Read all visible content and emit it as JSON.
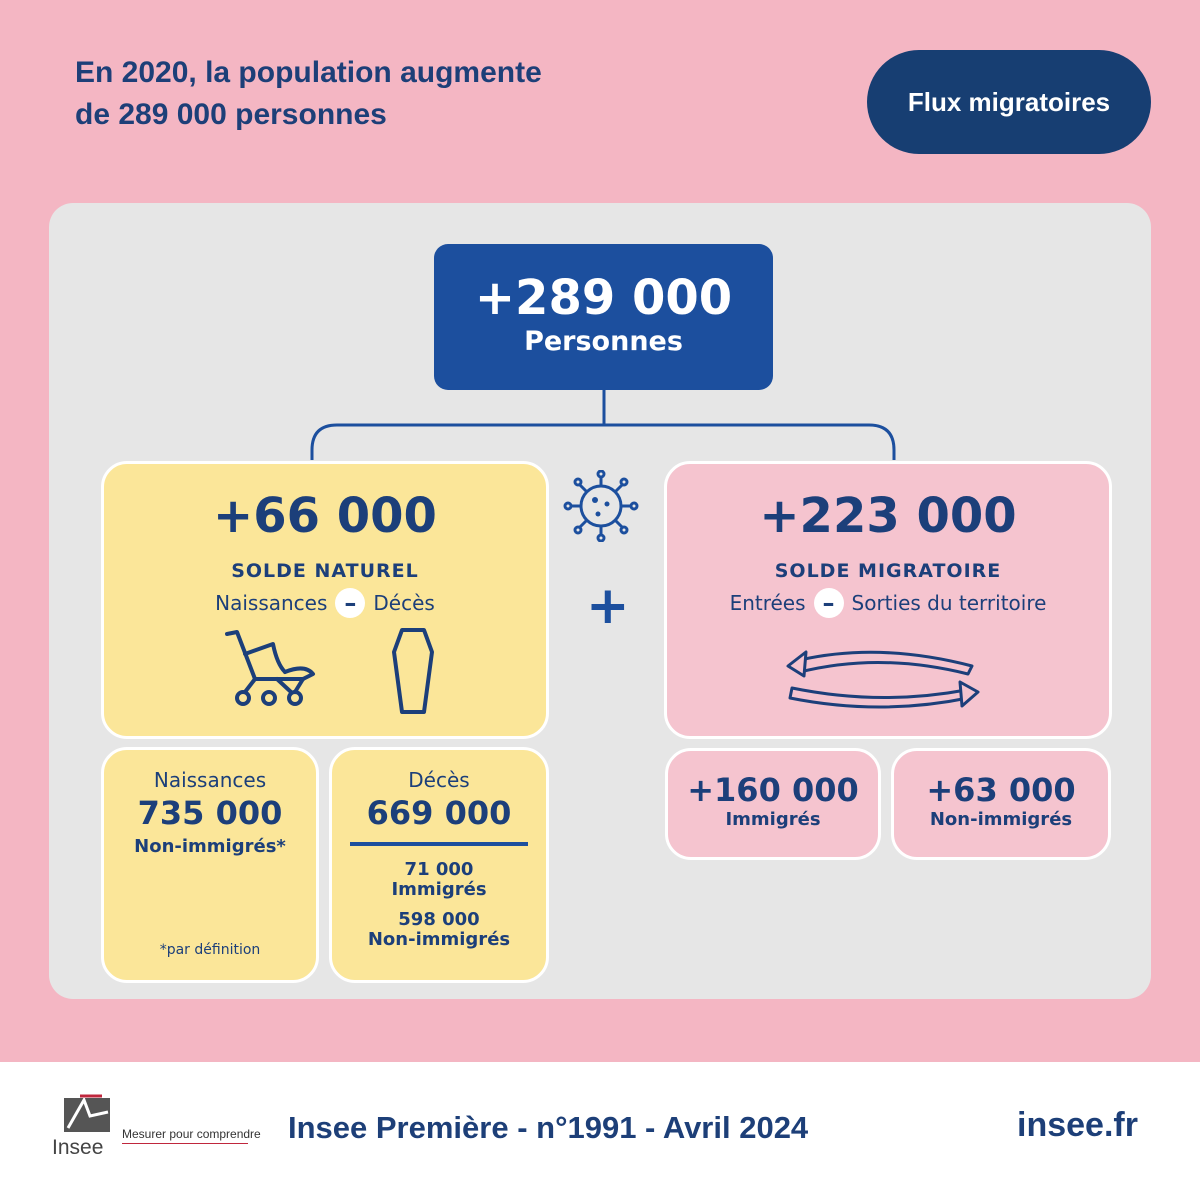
{
  "header": {
    "title_line1": "En 2020, la population augmente",
    "title_line2": "de 289 000 personnes",
    "tag_label": "Flux migratoires"
  },
  "total": {
    "value": "+289 000",
    "label": "Personnes"
  },
  "plus_sign": "+",
  "natural": {
    "value": "+66 000",
    "label": "SOLDE NATUREL",
    "left_term": "Naissances",
    "right_term": "Décès",
    "operator": "–",
    "icons": [
      "stroller-icon",
      "coffin-icon"
    ]
  },
  "migratory": {
    "value": "+223 000",
    "label": "SOLDE MIGRATOIRE",
    "left_term": "Entrées",
    "right_term": "Sorties du territoire",
    "operator": "–",
    "icons": [
      "exchange-arrows-icon"
    ]
  },
  "births": {
    "label": "Naissances",
    "value": "735 000",
    "sub": "Non-immigrés*",
    "footnote": "*par définition"
  },
  "deaths": {
    "label": "Décès",
    "value": "669 000",
    "part1_value": "71 000",
    "part1_label": "Immigrés",
    "part2_value": "598 000",
    "part2_label": "Non-immigrés"
  },
  "immigrants": {
    "value": "+160 000",
    "label": "Immigrés"
  },
  "non_immigrants": {
    "value": "+63 000",
    "label": "Non-immigrés"
  },
  "virus_icon": "virus-icon",
  "footer": {
    "logo_word": "Insee",
    "tagline": "Mesurer pour comprendre",
    "publication": "Insee Première - n°1991 - Avril 2024",
    "site": "insee.fr"
  },
  "colors": {
    "background_pink": "#f4b6c3",
    "panel_gray": "#e6e6e6",
    "navy": "#1d3f78",
    "blue_box": "#1c4f9e",
    "yellow_card": "#fbe699",
    "pink_card": "#f5c4cf"
  }
}
